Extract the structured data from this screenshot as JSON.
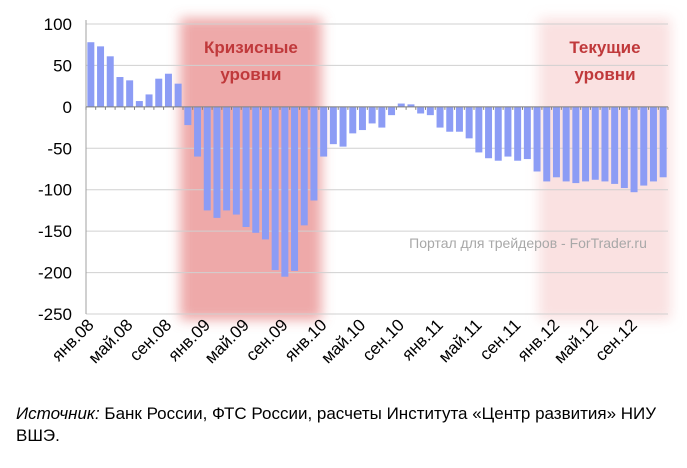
{
  "chart_data": {
    "type": "bar",
    "ylim": [
      -250,
      100
    ],
    "yticks": [
      100,
      50,
      0,
      -50,
      -100,
      -150,
      -200,
      -250
    ],
    "grid": true,
    "bar_color": "#8c9cf5",
    "categories": [
      "янв.08",
      "фев.08",
      "мар.08",
      "апр.08",
      "май.08",
      "июн.08",
      "июл.08",
      "авг.08",
      "сен.08",
      "окт.08",
      "ноя.08",
      "дек.08",
      "янв.09",
      "фев.09",
      "мар.09",
      "апр.09",
      "май.09",
      "июн.09",
      "июл.09",
      "авг.09",
      "сен.09",
      "окт.09",
      "ноя.09",
      "дек.09",
      "янв.10",
      "фев.10",
      "мар.10",
      "апр.10",
      "май.10",
      "июн.10",
      "июл.10",
      "авг.10",
      "сен.10",
      "окт.10",
      "ноя.10",
      "дек.10",
      "янв.11",
      "фев.11",
      "мар.11",
      "апр.11",
      "май.11",
      "июн.11",
      "июл.11",
      "авг.11",
      "сен.11",
      "окт.11",
      "ноя.11",
      "дек.11",
      "янв.12",
      "фев.12",
      "мар.12",
      "апр.12",
      "май.12",
      "июн.12",
      "июл.12",
      "авг.12",
      "сен.12",
      "окт.12",
      "ноя.12",
      "дек.12"
    ],
    "values": [
      78,
      73,
      61,
      36,
      32,
      7,
      15,
      34,
      40,
      28,
      -22,
      -60,
      -125,
      -134,
      -125,
      -130,
      -145,
      -152,
      -160,
      -197,
      -205,
      -198,
      -143,
      -113,
      -60,
      -45,
      -48,
      -32,
      -28,
      -20,
      -25,
      -10,
      4,
      3,
      -8,
      -10,
      -25,
      -30,
      -30,
      -38,
      -55,
      -62,
      -65,
      -60,
      -65,
      -63,
      -78,
      -90,
      -85,
      -90,
      -92,
      -90,
      -88,
      -90,
      -93,
      -98,
      -103,
      -95,
      -90,
      -85
    ],
    "xtick_labels": [
      {
        "index": 0,
        "label": "янв.08"
      },
      {
        "index": 4,
        "label": "май.08"
      },
      {
        "index": 8,
        "label": "сен.08"
      },
      {
        "index": 12,
        "label": "янв.09"
      },
      {
        "index": 16,
        "label": "май.09"
      },
      {
        "index": 20,
        "label": "сен.09"
      },
      {
        "index": 24,
        "label": "янв.10"
      },
      {
        "index": 28,
        "label": "май.10"
      },
      {
        "index": 32,
        "label": "сен.10"
      },
      {
        "index": 36,
        "label": "янв.11"
      },
      {
        "index": 40,
        "label": "май.11"
      },
      {
        "index": 44,
        "label": "сен.11"
      },
      {
        "index": 48,
        "label": "янв.12"
      },
      {
        "index": 52,
        "label": "май.12"
      },
      {
        "index": 56,
        "label": "сен.12"
      }
    ],
    "highlights": [
      {
        "label_line1": "Кризисные",
        "label_line2": "уровни",
        "from_index": 10,
        "to_index": 23,
        "color": "#e06060",
        "opacity": 0.55
      },
      {
        "label_line1": "Текущие",
        "label_line2": "уровни",
        "from_index": 47,
        "to_index": 59,
        "color": "#f2a8a8",
        "opacity": 0.35
      }
    ],
    "highlight_label_color": "#c0393b",
    "watermark": "Портал для трейдеров - ForTrader.ru"
  },
  "source": {
    "label": "Источник:",
    "text": " Банк России, ФТС России, расчеты Института «Центр развития» НИУ ВШЭ."
  }
}
